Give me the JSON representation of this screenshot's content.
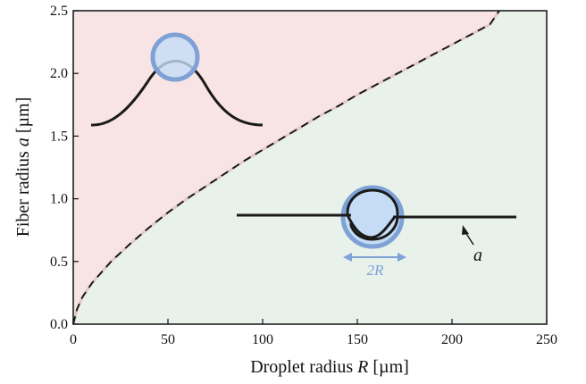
{
  "chart_data": {
    "type": "area",
    "title": "",
    "xlabel": {
      "prefix": "Droplet radius ",
      "italic": "R",
      "suffix": " [µm]"
    },
    "ylabel": {
      "prefix": "Fiber radius ",
      "italic": "a",
      "suffix": " [µm]"
    },
    "xlim": [
      0,
      250
    ],
    "ylim": [
      0,
      2.5
    ],
    "xticks": [
      0,
      50,
      100,
      150,
      200,
      250
    ],
    "yticks": [
      0.0,
      0.5,
      1.0,
      1.5,
      2.0,
      2.5
    ],
    "xtick_labels": [
      "0",
      "50",
      "100",
      "150",
      "200",
      "250"
    ],
    "ytick_labels": [
      "0.0",
      "0.5",
      "1.0",
      "1.5",
      "2.0",
      "2.5"
    ],
    "boundary": {
      "style": "dashed",
      "x": [
        0,
        2,
        5,
        10,
        20,
        30,
        40,
        50,
        60,
        70,
        80,
        90,
        100,
        110,
        120,
        130,
        140,
        150,
        160,
        170,
        180,
        190,
        200,
        210,
        220,
        225
      ],
      "y": [
        0,
        0.12,
        0.22,
        0.33,
        0.5,
        0.64,
        0.77,
        0.89,
        1.0,
        1.1,
        1.2,
        1.3,
        1.39,
        1.48,
        1.57,
        1.66,
        1.74,
        1.83,
        1.91,
        1.99,
        2.07,
        2.15,
        2.23,
        2.31,
        2.39,
        2.5
      ]
    },
    "regions": {
      "upper": {
        "color": "#f8e4e4"
      },
      "lower": {
        "color": "#e8f1ea"
      }
    },
    "annotations": {
      "a_label": "a",
      "two_r_label": "2R",
      "droplet_fill": "#c6dcf6",
      "droplet_stroke": "#7ea2d6",
      "fiber_color": "#1a1a1a"
    }
  }
}
